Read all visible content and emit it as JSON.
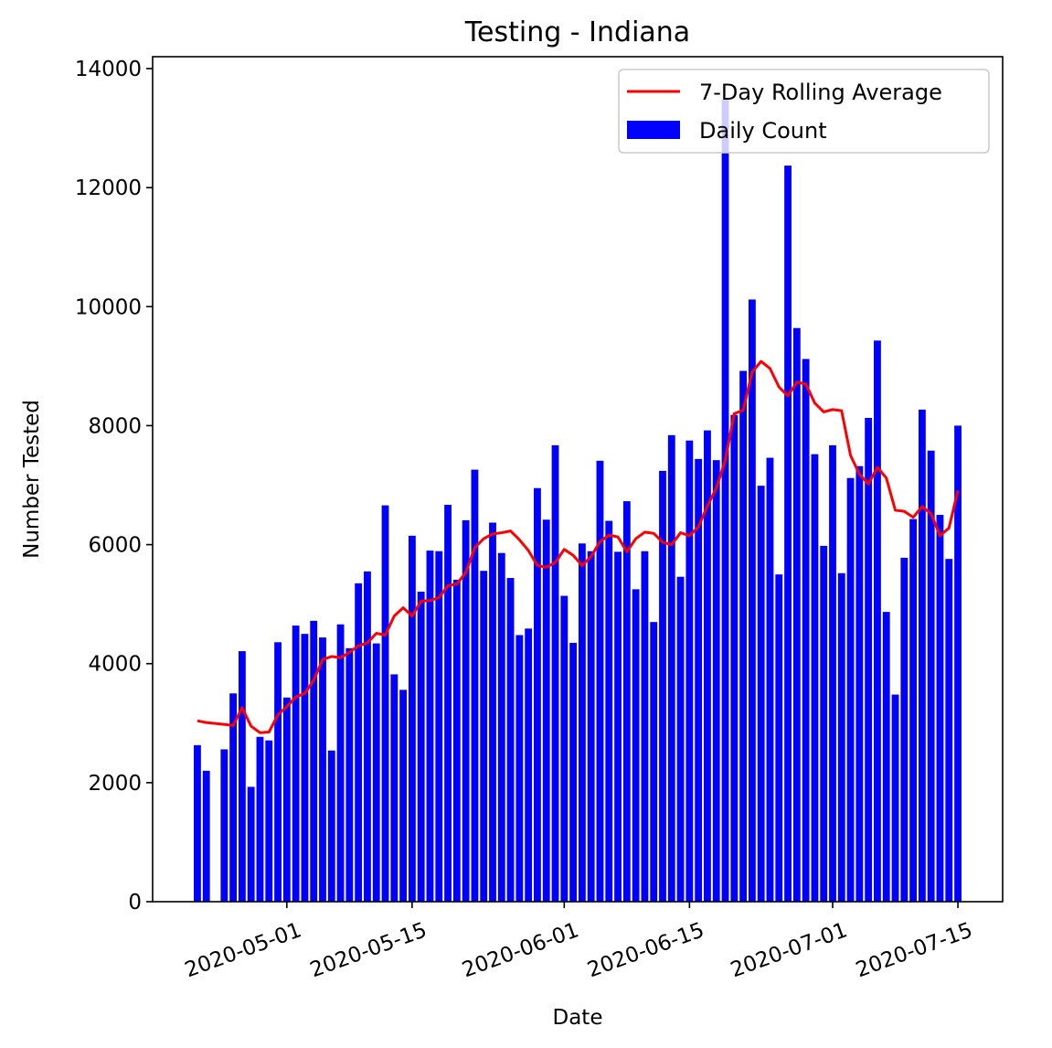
{
  "chart_data": {
    "type": "bar",
    "title": "Testing - Indiana",
    "xlabel": "Date",
    "ylabel": "Number Tested",
    "ylim": [
      0,
      14200
    ],
    "yticks": [
      0,
      2000,
      4000,
      6000,
      8000,
      10000,
      12000,
      14000
    ],
    "ytick_labels": [
      "0",
      "2000",
      "4000",
      "6000",
      "8000",
      "10000",
      "12000",
      "14000"
    ],
    "xlim": [
      "2020-04-16",
      "2020-07-20"
    ],
    "xticks": [
      "2020-05-01",
      "2020-05-15",
      "2020-06-01",
      "2020-06-15",
      "2020-07-01",
      "2020-07-15"
    ],
    "xtick_labels": [
      "2020-05-01",
      "2020-05-15",
      "2020-06-01",
      "2020-06-15",
      "2020-07-01",
      "2020-07-15"
    ],
    "grid": false,
    "legend": {
      "position": "top-right",
      "line_label": "7-Day Rolling Average",
      "bar_label": "Daily Count"
    },
    "colors": {
      "bars": "#0000ff",
      "line": "#ff0000"
    },
    "x": [
      "2020-04-21",
      "2020-04-22",
      "2020-04-24",
      "2020-04-25",
      "2020-04-26",
      "2020-04-27",
      "2020-04-28",
      "2020-04-29",
      "2020-04-30",
      "2020-05-01",
      "2020-05-02",
      "2020-05-03",
      "2020-05-04",
      "2020-05-05",
      "2020-05-06",
      "2020-05-07",
      "2020-05-08",
      "2020-05-09",
      "2020-05-10",
      "2020-05-11",
      "2020-05-12",
      "2020-05-13",
      "2020-05-14",
      "2020-05-15",
      "2020-05-16",
      "2020-05-17",
      "2020-05-18",
      "2020-05-19",
      "2020-05-20",
      "2020-05-21",
      "2020-05-22",
      "2020-05-23",
      "2020-05-24",
      "2020-05-25",
      "2020-05-26",
      "2020-05-27",
      "2020-05-28",
      "2020-05-29",
      "2020-05-30",
      "2020-05-31",
      "2020-06-01",
      "2020-06-02",
      "2020-06-03",
      "2020-06-04",
      "2020-06-05",
      "2020-06-06",
      "2020-06-07",
      "2020-06-08",
      "2020-06-09",
      "2020-06-10",
      "2020-06-11",
      "2020-06-12",
      "2020-06-13",
      "2020-06-14",
      "2020-06-15",
      "2020-06-16",
      "2020-06-17",
      "2020-06-18",
      "2020-06-19",
      "2020-06-20",
      "2020-06-21",
      "2020-06-22",
      "2020-06-23",
      "2020-06-24",
      "2020-06-25",
      "2020-06-26",
      "2020-06-27",
      "2020-06-28",
      "2020-06-29",
      "2020-06-30",
      "2020-07-01",
      "2020-07-02",
      "2020-07-03",
      "2020-07-04",
      "2020-07-05",
      "2020-07-06",
      "2020-07-07",
      "2020-07-08",
      "2020-07-09",
      "2020-07-10",
      "2020-07-11",
      "2020-07-12",
      "2020-07-13",
      "2020-07-14",
      "2020-07-15"
    ],
    "series": [
      {
        "name": "Daily Count",
        "type": "bar",
        "values": [
          2630,
          2200,
          2560,
          3500,
          4210,
          1930,
          2770,
          2710,
          4360,
          3430,
          4640,
          4500,
          4720,
          4440,
          2540,
          4660,
          4260,
          5350,
          5550,
          4340,
          6660,
          3820,
          3560,
          6150,
          5210,
          5900,
          5890,
          6670,
          5410,
          6410,
          7260,
          5560,
          6370,
          5860,
          5440,
          4480,
          4590,
          6950,
          6420,
          7670,
          5140,
          4350,
          6020,
          5890,
          7410,
          6400,
          5880,
          6730,
          5250,
          5890,
          4700,
          7240,
          7840,
          5460,
          7750,
          7440,
          7920,
          7420,
          13480,
          8180,
          8920,
          10120,
          6990,
          7460,
          5500,
          12370,
          9640,
          9120,
          7520,
          5980,
          7670,
          5520,
          7120,
          7320,
          8130,
          9430,
          4870,
          3480,
          5780,
          6430,
          8270,
          7580,
          6500,
          5760,
          8000
        ]
      },
      {
        "name": "7-Day Rolling Average",
        "type": "line",
        "values": [
          3040,
          3010,
          2980,
          2960,
          3260,
          2950,
          2840,
          2850,
          3140,
          3280,
          3440,
          3500,
          3720,
          4070,
          4120,
          4100,
          4190,
          4300,
          4350,
          4510,
          4480,
          4800,
          4940,
          4800,
          5050,
          5060,
          5110,
          5310,
          5340,
          5530,
          5950,
          6100,
          6180,
          6200,
          6230,
          6080,
          5900,
          5650,
          5620,
          5700,
          5920,
          5820,
          5650,
          5800,
          6050,
          6160,
          6130,
          5880,
          6100,
          6210,
          6190,
          6040,
          6000,
          6200,
          6150,
          6300,
          6650,
          6950,
          7420,
          8200,
          8260,
          8900,
          9080,
          8960,
          8650,
          8500,
          8730,
          8700,
          8380,
          8230,
          8270,
          8250,
          7500,
          7180,
          7020,
          7300,
          7120,
          6580,
          6560,
          6460,
          6640,
          6520,
          6150,
          6280,
          6910
        ]
      }
    ]
  }
}
